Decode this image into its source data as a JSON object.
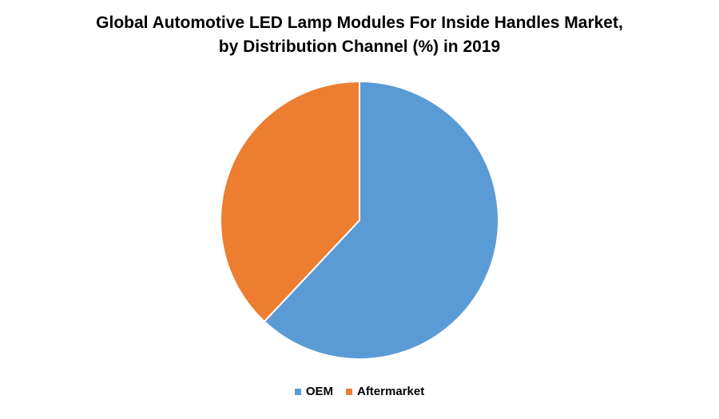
{
  "chart_data": {
    "type": "pie",
    "title_lines": [
      "Global Automotive LED Lamp Modules For Inside Handles Market,",
      "by Distribution Channel (%) in 2019"
    ],
    "categories": [
      "OEM",
      "Aftermarket"
    ],
    "values": [
      62,
      38
    ],
    "colors": [
      "#5B9BD5",
      "#ED7D31"
    ],
    "legend_position": "bottom"
  }
}
